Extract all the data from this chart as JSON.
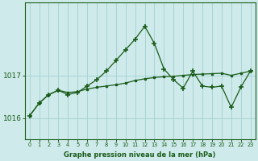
{
  "title": "Graphe pression niveau de la mer (hPa)",
  "bg_color": "#ceeaea",
  "grid_color": "#a8d4d4",
  "line_color": "#1a5c1a",
  "x_labels": [
    "0",
    "1",
    "2",
    "3",
    "4",
    "5",
    "6",
    "7",
    "8",
    "9",
    "10",
    "11",
    "12",
    "13",
    "14",
    "15",
    "16",
    "17",
    "18",
    "19",
    "20",
    "21",
    "22",
    "23"
  ],
  "y_ticks": [
    1016,
    1017
  ],
  "ylim": [
    1015.5,
    1018.7
  ],
  "series1_x": [
    0,
    1,
    2,
    3,
    4,
    5,
    6,
    7,
    8,
    9,
    10,
    11,
    12,
    13,
    14,
    15,
    16,
    17,
    18,
    19,
    20,
    21,
    22,
    23
  ],
  "series1": [
    1016.05,
    1016.35,
    1016.55,
    1016.65,
    1016.6,
    1016.62,
    1016.68,
    1016.72,
    1016.75,
    1016.78,
    1016.82,
    1016.88,
    1016.92,
    1016.95,
    1016.97,
    1016.98,
    1017.0,
    1017.02,
    1017.03,
    1017.04,
    1017.05,
    1017.0,
    1017.05,
    1017.1
  ],
  "series2_x": [
    0,
    1,
    2,
    3,
    4,
    5,
    6,
    7,
    8,
    9,
    10,
    11,
    12,
    13,
    14,
    15,
    16,
    17,
    18,
    19,
    20,
    21,
    22,
    23
  ],
  "series2": [
    1016.05,
    1016.35,
    1016.55,
    1016.65,
    1016.55,
    1016.6,
    1016.75,
    1016.9,
    1017.1,
    1017.35,
    1017.6,
    1017.85,
    1018.15,
    1017.75,
    1017.15,
    1016.9,
    1016.7,
    1017.1,
    1016.75,
    1016.72,
    1016.75,
    1016.25,
    1016.72,
    1017.1
  ]
}
